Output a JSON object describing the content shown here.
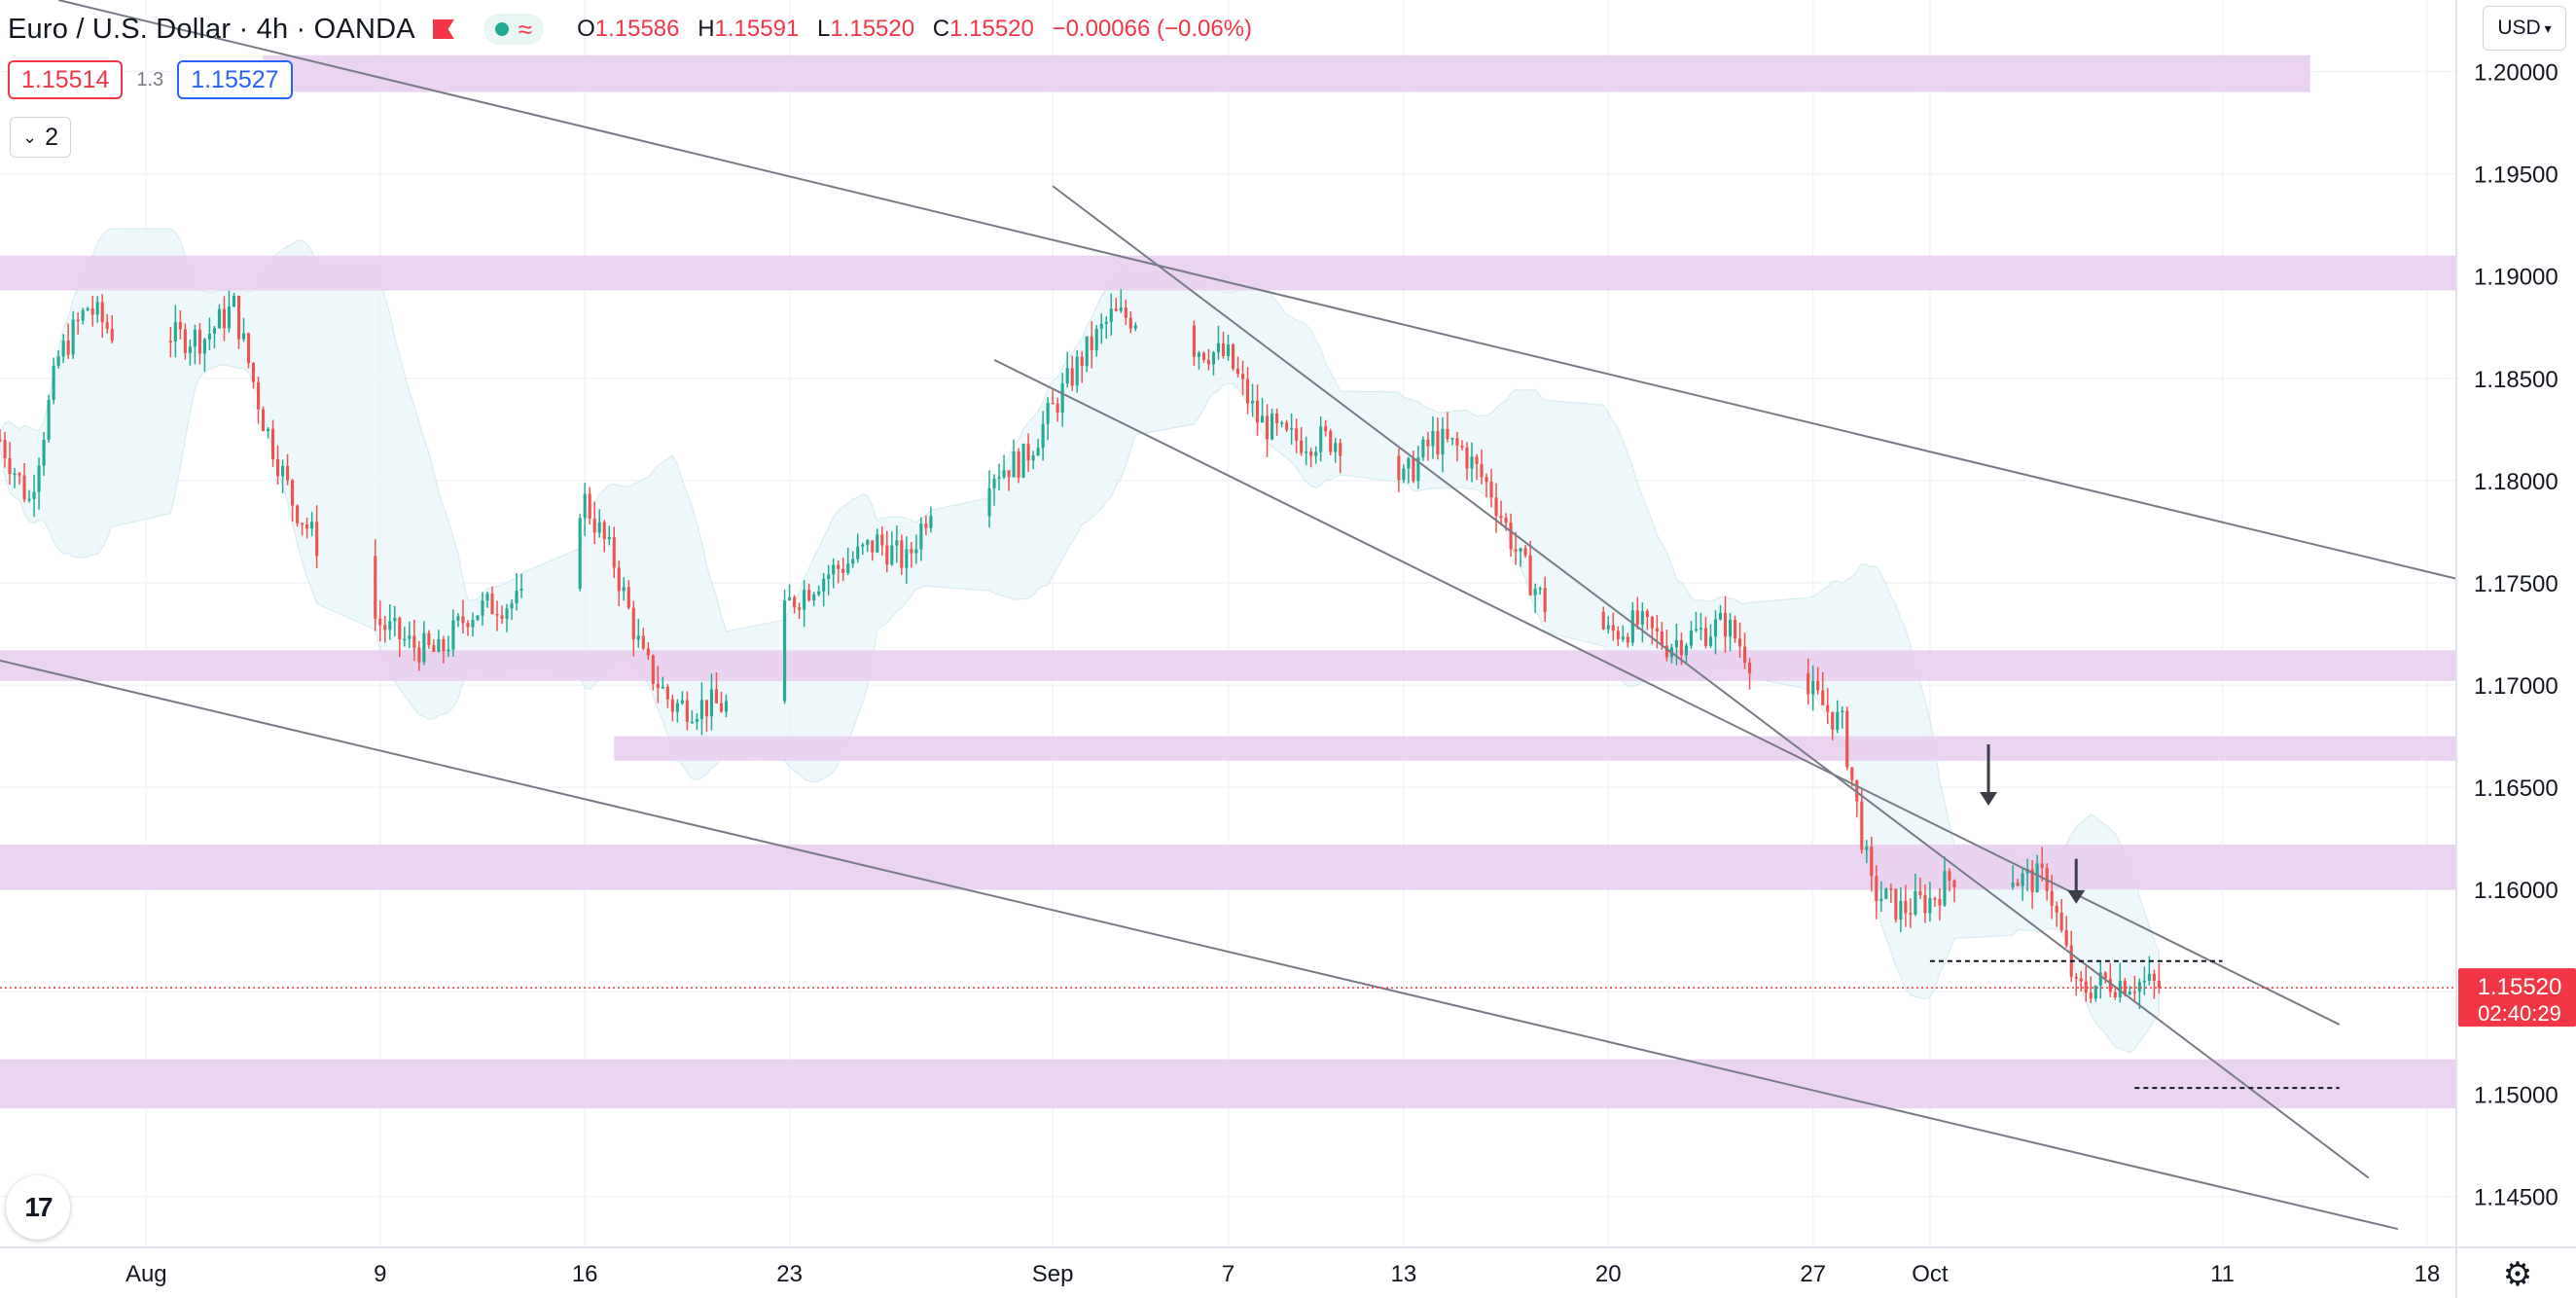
{
  "header": {
    "symbol_title": "Euro / U.S. Dollar",
    "interval": "4h",
    "broker": "OANDA",
    "open_label": "O",
    "open": "1.15586",
    "high_label": "H",
    "high": "1.15591",
    "low_label": "L",
    "low": "1.15520",
    "close_label": "C",
    "close": "1.15520",
    "change": "−0.00066 (−0.06%)"
  },
  "trade": {
    "sell": "1.15514",
    "spread": "1.3",
    "buy": "1.15527"
  },
  "indicators_count": "2",
  "currency": "USD",
  "logo_text": "17",
  "colors": {
    "up": "#22ab94",
    "down": "#ef5350",
    "zone": "#e7cdee",
    "band": "#eaf6f8"
  },
  "chart_data": {
    "type": "candlestick",
    "ylim": [
      1.1425,
      1.2035
    ],
    "y_ticks": [
      "1.20000",
      "1.19500",
      "1.19000",
      "1.18500",
      "1.18000",
      "1.17500",
      "1.17000",
      "1.16500",
      "1.16000",
      "1.15500",
      "1.15000",
      "1.14500"
    ],
    "x_ticks": [
      {
        "label": "Aug",
        "date": "2021-08-01"
      },
      {
        "label": "9",
        "date": "2021-08-09"
      },
      {
        "label": "16",
        "date": "2021-08-16"
      },
      {
        "label": "23",
        "date": "2021-08-23"
      },
      {
        "label": "Sep",
        "date": "2021-09-01"
      },
      {
        "label": "7",
        "date": "2021-09-07"
      },
      {
        "label": "13",
        "date": "2021-09-13"
      },
      {
        "label": "20",
        "date": "2021-09-20"
      },
      {
        "label": "27",
        "date": "2021-09-27"
      },
      {
        "label": "Oct",
        "date": "2021-10-01"
      },
      {
        "label": "11",
        "date": "2021-10-11"
      },
      {
        "label": "18",
        "date": "2021-10-18"
      }
    ],
    "x_range": [
      "2021-07-27",
      "2021-10-19"
    ],
    "price_path": [
      [
        "2021-07-27",
        1.182
      ],
      [
        "2021-07-28",
        1.179
      ],
      [
        "2021-07-29",
        1.186
      ],
      [
        "2021-07-30",
        1.1885
      ],
      [
        "2021-07-31",
        1.187
      ],
      [
        "2021-08-01",
        1.188
      ],
      [
        "2021-08-02",
        1.187
      ],
      [
        "2021-08-03",
        1.187
      ],
      [
        "2021-08-04",
        1.1885
      ],
      [
        "2021-08-05",
        1.183
      ],
      [
        "2021-08-06",
        1.179
      ],
      [
        "2021-08-07",
        1.1765
      ],
      [
        "2021-08-08",
        1.1745
      ],
      [
        "2021-08-09",
        1.173
      ],
      [
        "2021-08-10",
        1.172
      ],
      [
        "2021-08-11",
        1.1715
      ],
      [
        "2021-08-12",
        1.1735
      ],
      [
        "2021-08-13",
        1.174
      ],
      [
        "2021-08-14",
        1.174
      ],
      [
        "2021-08-15",
        1.178
      ],
      [
        "2021-08-16",
        1.179
      ],
      [
        "2021-08-17",
        1.176
      ],
      [
        "2021-08-18",
        1.1712
      ],
      [
        "2021-08-19",
        1.169
      ],
      [
        "2021-08-20",
        1.169
      ],
      [
        "2021-08-21",
        1.169
      ],
      [
        "2021-08-22",
        1.1705
      ],
      [
        "2021-08-23",
        1.174
      ],
      [
        "2021-08-24",
        1.1752
      ],
      [
        "2021-08-25",
        1.176
      ],
      [
        "2021-08-26",
        1.177
      ],
      [
        "2021-08-27",
        1.176
      ],
      [
        "2021-08-28",
        1.1795
      ],
      [
        "2021-08-29",
        1.18
      ],
      [
        "2021-08-30",
        1.1805
      ],
      [
        "2021-08-31",
        1.181
      ],
      [
        "2021-09-01",
        1.1835
      ],
      [
        "2021-09-02",
        1.186
      ],
      [
        "2021-09-03",
        1.188
      ],
      [
        "2021-09-04",
        1.188
      ],
      [
        "2021-09-05",
        1.187
      ],
      [
        "2021-09-06",
        1.1865
      ],
      [
        "2021-09-07",
        1.186
      ],
      [
        "2021-09-08",
        1.183
      ],
      [
        "2021-09-09",
        1.182
      ],
      [
        "2021-09-10",
        1.182
      ],
      [
        "2021-09-11",
        1.182
      ],
      [
        "2021-09-12",
        1.1815
      ],
      [
        "2021-09-13",
        1.18
      ],
      [
        "2021-09-14",
        1.182
      ],
      [
        "2021-09-15",
        1.1815
      ],
      [
        "2021-09-16",
        1.1795
      ],
      [
        "2021-09-17",
        1.176
      ],
      [
        "2021-09-18",
        1.1735
      ],
      [
        "2021-09-19",
        1.174
      ],
      [
        "2021-09-20",
        1.1725
      ],
      [
        "2021-09-21",
        1.173
      ],
      [
        "2021-09-22",
        1.172
      ],
      [
        "2021-09-23",
        1.1725
      ],
      [
        "2021-09-24",
        1.173
      ],
      [
        "2021-09-25",
        1.171
      ],
      [
        "2021-09-26",
        1.17
      ],
      [
        "2021-09-27",
        1.1695
      ],
      [
        "2021-09-28",
        1.168
      ],
      [
        "2021-09-29",
        1.16
      ],
      [
        "2021-09-30",
        1.159
      ],
      [
        "2021-10-01",
        1.1595
      ],
      [
        "2021-10-02",
        1.161
      ],
      [
        "2021-10-03",
        1.162
      ],
      [
        "2021-10-04",
        1.1605
      ],
      [
        "2021-10-05",
        1.1605
      ],
      [
        "2021-10-06",
        1.155
      ],
      [
        "2021-10-07",
        1.1555
      ],
      [
        "2021-10-08",
        1.1555
      ],
      [
        "2021-10-09",
        1.1552
      ]
    ],
    "zones": [
      {
        "from": 1.199,
        "to": 1.2008,
        "x_from": "2021-08-05",
        "x_to": "2021-10-14"
      },
      {
        "from": 1.1893,
        "to": 1.191
      },
      {
        "from": 1.1702,
        "to": 1.1717
      },
      {
        "from": 1.1663,
        "to": 1.1675,
        "x_from": "2021-08-17"
      },
      {
        "from": 1.16,
        "to": 1.1622
      },
      {
        "from": 1.1493,
        "to": 1.1517
      }
    ],
    "trendlines": [
      {
        "from": [
          "2021-07-29",
          1.2035
        ],
        "to": [
          "2021-10-19",
          1.1752
        ]
      },
      {
        "from": [
          "2021-07-27",
          1.1712
        ],
        "to": [
          "2021-10-17",
          1.1434
        ]
      },
      {
        "from": [
          "2021-08-30",
          1.1859
        ],
        "to": [
          "2021-10-15",
          1.1534
        ]
      },
      {
        "from": [
          "2021-09-01",
          1.1944
        ],
        "to": [
          "2021-10-16",
          1.1459
        ]
      }
    ],
    "marks": [
      {
        "type": "arrow-down",
        "x": "2021-10-03",
        "y_top": 1.1671,
        "y_tip": 1.1641
      },
      {
        "type": "arrow-down",
        "x": "2021-10-06",
        "y_top": 1.1615,
        "y_tip": 1.1593
      },
      {
        "type": "dashed",
        "y": 1.1565,
        "x_from": "2021-10-01",
        "x_to": "2021-10-11"
      },
      {
        "type": "dashed",
        "y": 1.1503,
        "x_from": "2021-10-08",
        "x_to": "2021-10-15"
      }
    ],
    "last_price": {
      "value": "1.15520",
      "countdown": "02:40:29",
      "y": 1.1552
    }
  }
}
